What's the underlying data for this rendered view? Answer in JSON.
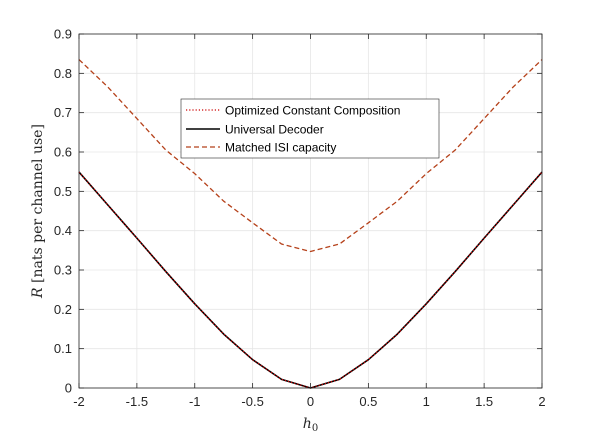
{
  "chart_data": {
    "type": "line",
    "title": "",
    "xlabel_var": "h",
    "xlabel_sub": "0",
    "ylabel_var": "R",
    "ylabel_text": " [nats per channel use]",
    "xlim": [
      -2,
      2
    ],
    "ylim": [
      0,
      0.9
    ],
    "xticks": [
      "-2",
      "-1.5",
      "-1",
      "-0.5",
      "0",
      "0.5",
      "1",
      "1.5",
      "2"
    ],
    "yticks": [
      "0",
      "0.1",
      "0.2",
      "0.3",
      "0.4",
      "0.5",
      "0.6",
      "0.7",
      "0.8",
      "0.9"
    ],
    "grid": true,
    "legend_position": "upper-center",
    "series": [
      {
        "name": "Optimized Constant Composition",
        "color": "#cc0000",
        "style": "dotted",
        "x": [
          -2,
          -1.75,
          -1.5,
          -1.25,
          -1,
          -0.75,
          -0.5,
          -0.25,
          0,
          0.25,
          0.5,
          0.75,
          1,
          1.25,
          1.5,
          1.75,
          2
        ],
        "y": [
          0.549,
          0.465,
          0.381,
          0.296,
          0.214,
          0.137,
          0.072,
          0.022,
          0.0,
          0.022,
          0.072,
          0.137,
          0.214,
          0.296,
          0.381,
          0.465,
          0.549
        ]
      },
      {
        "name": "Universal Decoder",
        "color": "#000000",
        "style": "solid",
        "x": [
          -2,
          -1.75,
          -1.5,
          -1.25,
          -1,
          -0.75,
          -0.5,
          -0.25,
          0,
          0.25,
          0.5,
          0.75,
          1,
          1.25,
          1.5,
          1.75,
          2
        ],
        "y": [
          0.549,
          0.465,
          0.381,
          0.296,
          0.214,
          0.137,
          0.072,
          0.022,
          0.0,
          0.022,
          0.072,
          0.137,
          0.214,
          0.296,
          0.381,
          0.465,
          0.549
        ]
      },
      {
        "name": "Matched ISI capacity",
        "color": "#b5411a",
        "style": "dashed",
        "x": [
          -2,
          -1.75,
          -1.5,
          -1.25,
          -1,
          -0.75,
          -0.5,
          -0.25,
          0,
          0.25,
          0.5,
          0.75,
          1,
          1.25,
          1.5,
          1.75,
          2
        ],
        "y": [
          0.835,
          0.765,
          0.685,
          0.605,
          0.545,
          0.475,
          0.42,
          0.366,
          0.347,
          0.366,
          0.42,
          0.475,
          0.545,
          0.605,
          0.685,
          0.765,
          0.835
        ]
      }
    ]
  }
}
